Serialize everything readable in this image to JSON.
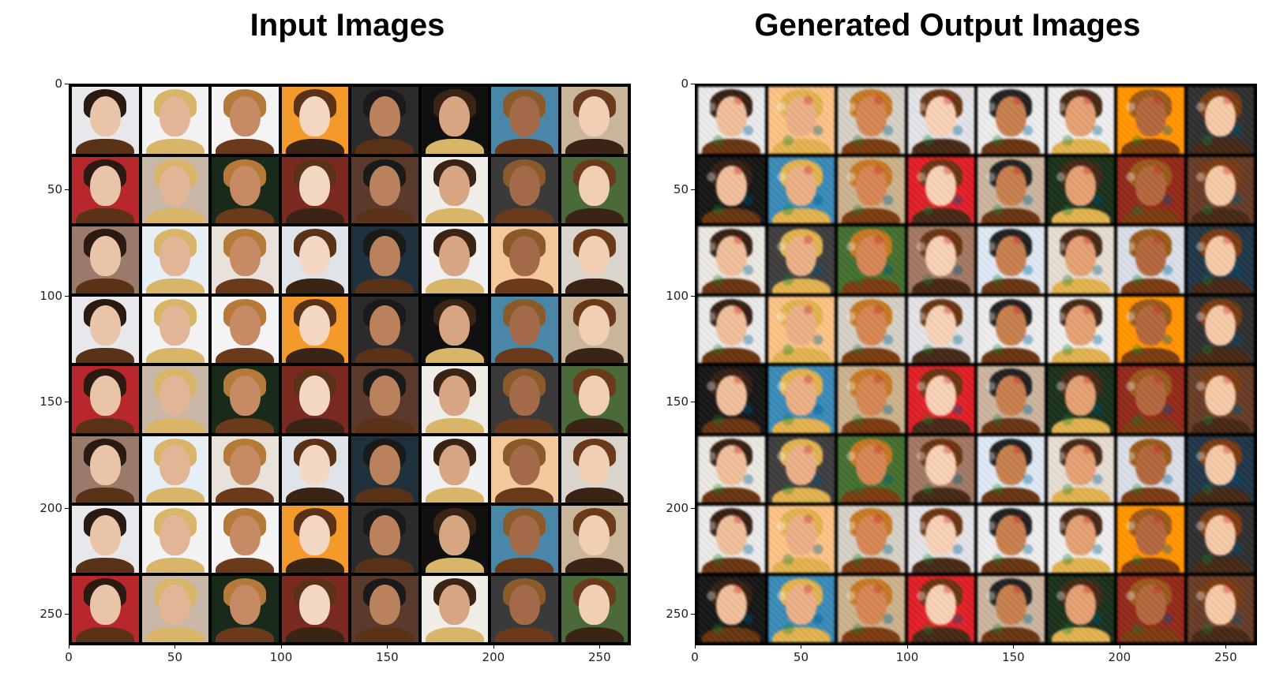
{
  "titles": {
    "left": "Input Images",
    "right": "Generated Output Images"
  },
  "axes": {
    "x_ticks": [
      "0",
      "50",
      "100",
      "150",
      "200",
      "250"
    ],
    "y_ticks": [
      "0",
      "50",
      "100",
      "150",
      "200",
      "250"
    ],
    "tick_values": [
      0,
      50,
      100,
      150,
      200,
      250
    ],
    "range": [
      0,
      264
    ]
  },
  "grid": {
    "rows": 8,
    "cols": 8
  },
  "palettes": {
    "bg": [
      "#e8e8ec",
      "#c9b59a",
      "#3a3a3a",
      "#f0f0f0",
      "#2b2b2b",
      "#7a2a20",
      "#e9e2da",
      "#f2f2f2",
      "#b8272c",
      "#4a6a3a",
      "#f3c99b",
      "#101010",
      "#5a3a2a",
      "#dfe3ea",
      "#f4f4f4",
      "#c9b8a8",
      "#9a7a6a",
      "#d9d4cc",
      "#4a86a8",
      "#f0ede8",
      "#20313e",
      "#f39a2a",
      "#1a2a1a",
      "#e6eef6"
    ],
    "skin": [
      "#e9c4a8",
      "#d8a583",
      "#c68a64",
      "#f1cfb5",
      "#b9825d",
      "#e2b596",
      "#a36a4a",
      "#f4d7c2"
    ],
    "hair": [
      "#2a1a12",
      "#5a3218",
      "#8a5a2a",
      "#d9b56a",
      "#1a1a1a",
      "#6a3a1a",
      "#b57a3a",
      "#3a2416"
    ]
  }
}
